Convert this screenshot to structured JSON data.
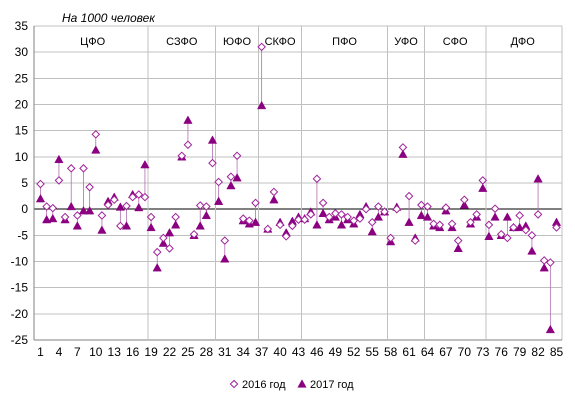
{
  "chart_data": {
    "type": "scatter",
    "unit_label": "На 1000 человек",
    "ylim": [
      -25,
      35
    ],
    "y_ticks": [
      35,
      30,
      25,
      20,
      15,
      10,
      5,
      0,
      -5,
      -10,
      -15,
      -20,
      -25
    ],
    "x_range": [
      1,
      85
    ],
    "x_ticks": [
      1,
      4,
      7,
      10,
      13,
      16,
      19,
      22,
      25,
      28,
      31,
      34,
      37,
      40,
      43,
      46,
      49,
      52,
      55,
      58,
      61,
      64,
      67,
      70,
      73,
      76,
      79,
      82,
      85
    ],
    "grid": true,
    "legend_position": "bottom",
    "groups": [
      {
        "name": "ЦФО",
        "start": 1,
        "end": 18
      },
      {
        "name": "СЗФО",
        "start": 19,
        "end": 29
      },
      {
        "name": "ЮФО",
        "start": 30,
        "end": 36
      },
      {
        "name": "СКФО",
        "start": 37,
        "end": 43
      },
      {
        "name": "ПФО",
        "start": 44,
        "end": 57
      },
      {
        "name": "УФО",
        "start": 58,
        "end": 63
      },
      {
        "name": "СФО",
        "start": 64,
        "end": 73
      },
      {
        "name": "ДФО",
        "start": 74,
        "end": 85
      }
    ],
    "series": [
      {
        "name": "2016 год",
        "marker": "diamond-open",
        "color": "#a0229a",
        "values": [
          4.8,
          0.5,
          0.2,
          5.5,
          -1.5,
          7.8,
          -1.2,
          7.8,
          4.2,
          14.3,
          -1.2,
          0.8,
          1.8,
          -3.2,
          0.6,
          2.3,
          2.8,
          2.3,
          -1.5,
          -8.2,
          -5.5,
          -7.5,
          -1.5,
          10.2,
          12.3,
          -4.8,
          0.7,
          0.5,
          8.8,
          5.2,
          -6.0,
          6.2,
          10.2,
          -1.8,
          -2.2,
          1.2,
          31.0,
          -3.8,
          3.3,
          -3.0,
          -5.2,
          -3.2,
          -2.0,
          -2.0,
          -1.0,
          5.8,
          1.2,
          -1.5,
          -0.8,
          -1.0,
          -1.5,
          -2.2,
          -1.8,
          0.0,
          -2.5,
          0.5,
          -0.5,
          -5.5,
          0.0,
          11.8,
          2.5,
          -6.0,
          0.8,
          0.5,
          -2.8,
          -3.0,
          0.3,
          -2.8,
          -6.0,
          1.8,
          -2.5,
          -1.0,
          5.5,
          -3.0,
          0.1,
          -4.8,
          -5.5,
          -3.5,
          -1.2,
          -4.0,
          -5.0,
          -1.0,
          -9.8,
          -10.2,
          -3.5
        ]
      },
      {
        "name": "2017 год",
        "marker": "triangle-filled",
        "color": "#8b0080",
        "values": [
          2.0,
          -2.0,
          -1.8,
          9.5,
          -2.0,
          0.5,
          -3.2,
          -0.3,
          -0.3,
          11.3,
          -4.0,
          1.5,
          2.3,
          0.4,
          -3.2,
          2.8,
          0.3,
          8.5,
          -3.5,
          -11.2,
          -6.5,
          -4.5,
          -3.0,
          10.0,
          17.0,
          -5.0,
          -3.2,
          -1.2,
          13.2,
          1.5,
          -9.5,
          4.5,
          6.0,
          -2.2,
          -2.8,
          -2.5,
          19.8,
          -3.8,
          1.8,
          -2.5,
          -4.5,
          -2.3,
          -1.5,
          -1.8,
          -0.5,
          -3.0,
          -0.8,
          -2.0,
          -1.5,
          -3.0,
          -2.0,
          -2.8,
          -1.0,
          0.5,
          -4.3,
          -1.5,
          -0.5,
          -6.2,
          0.4,
          10.5,
          -2.5,
          -5.5,
          -1.2,
          -1.5,
          -3.2,
          -3.5,
          -0.3,
          -3.5,
          -7.5,
          0.8,
          -2.8,
          -1.5,
          4.0,
          -5.2,
          -1.5,
          -5.0,
          -1.5,
          -3.5,
          -3.5,
          -3.2,
          -8.0,
          5.8,
          -11.2,
          -23.0,
          -2.5
        ]
      }
    ]
  }
}
